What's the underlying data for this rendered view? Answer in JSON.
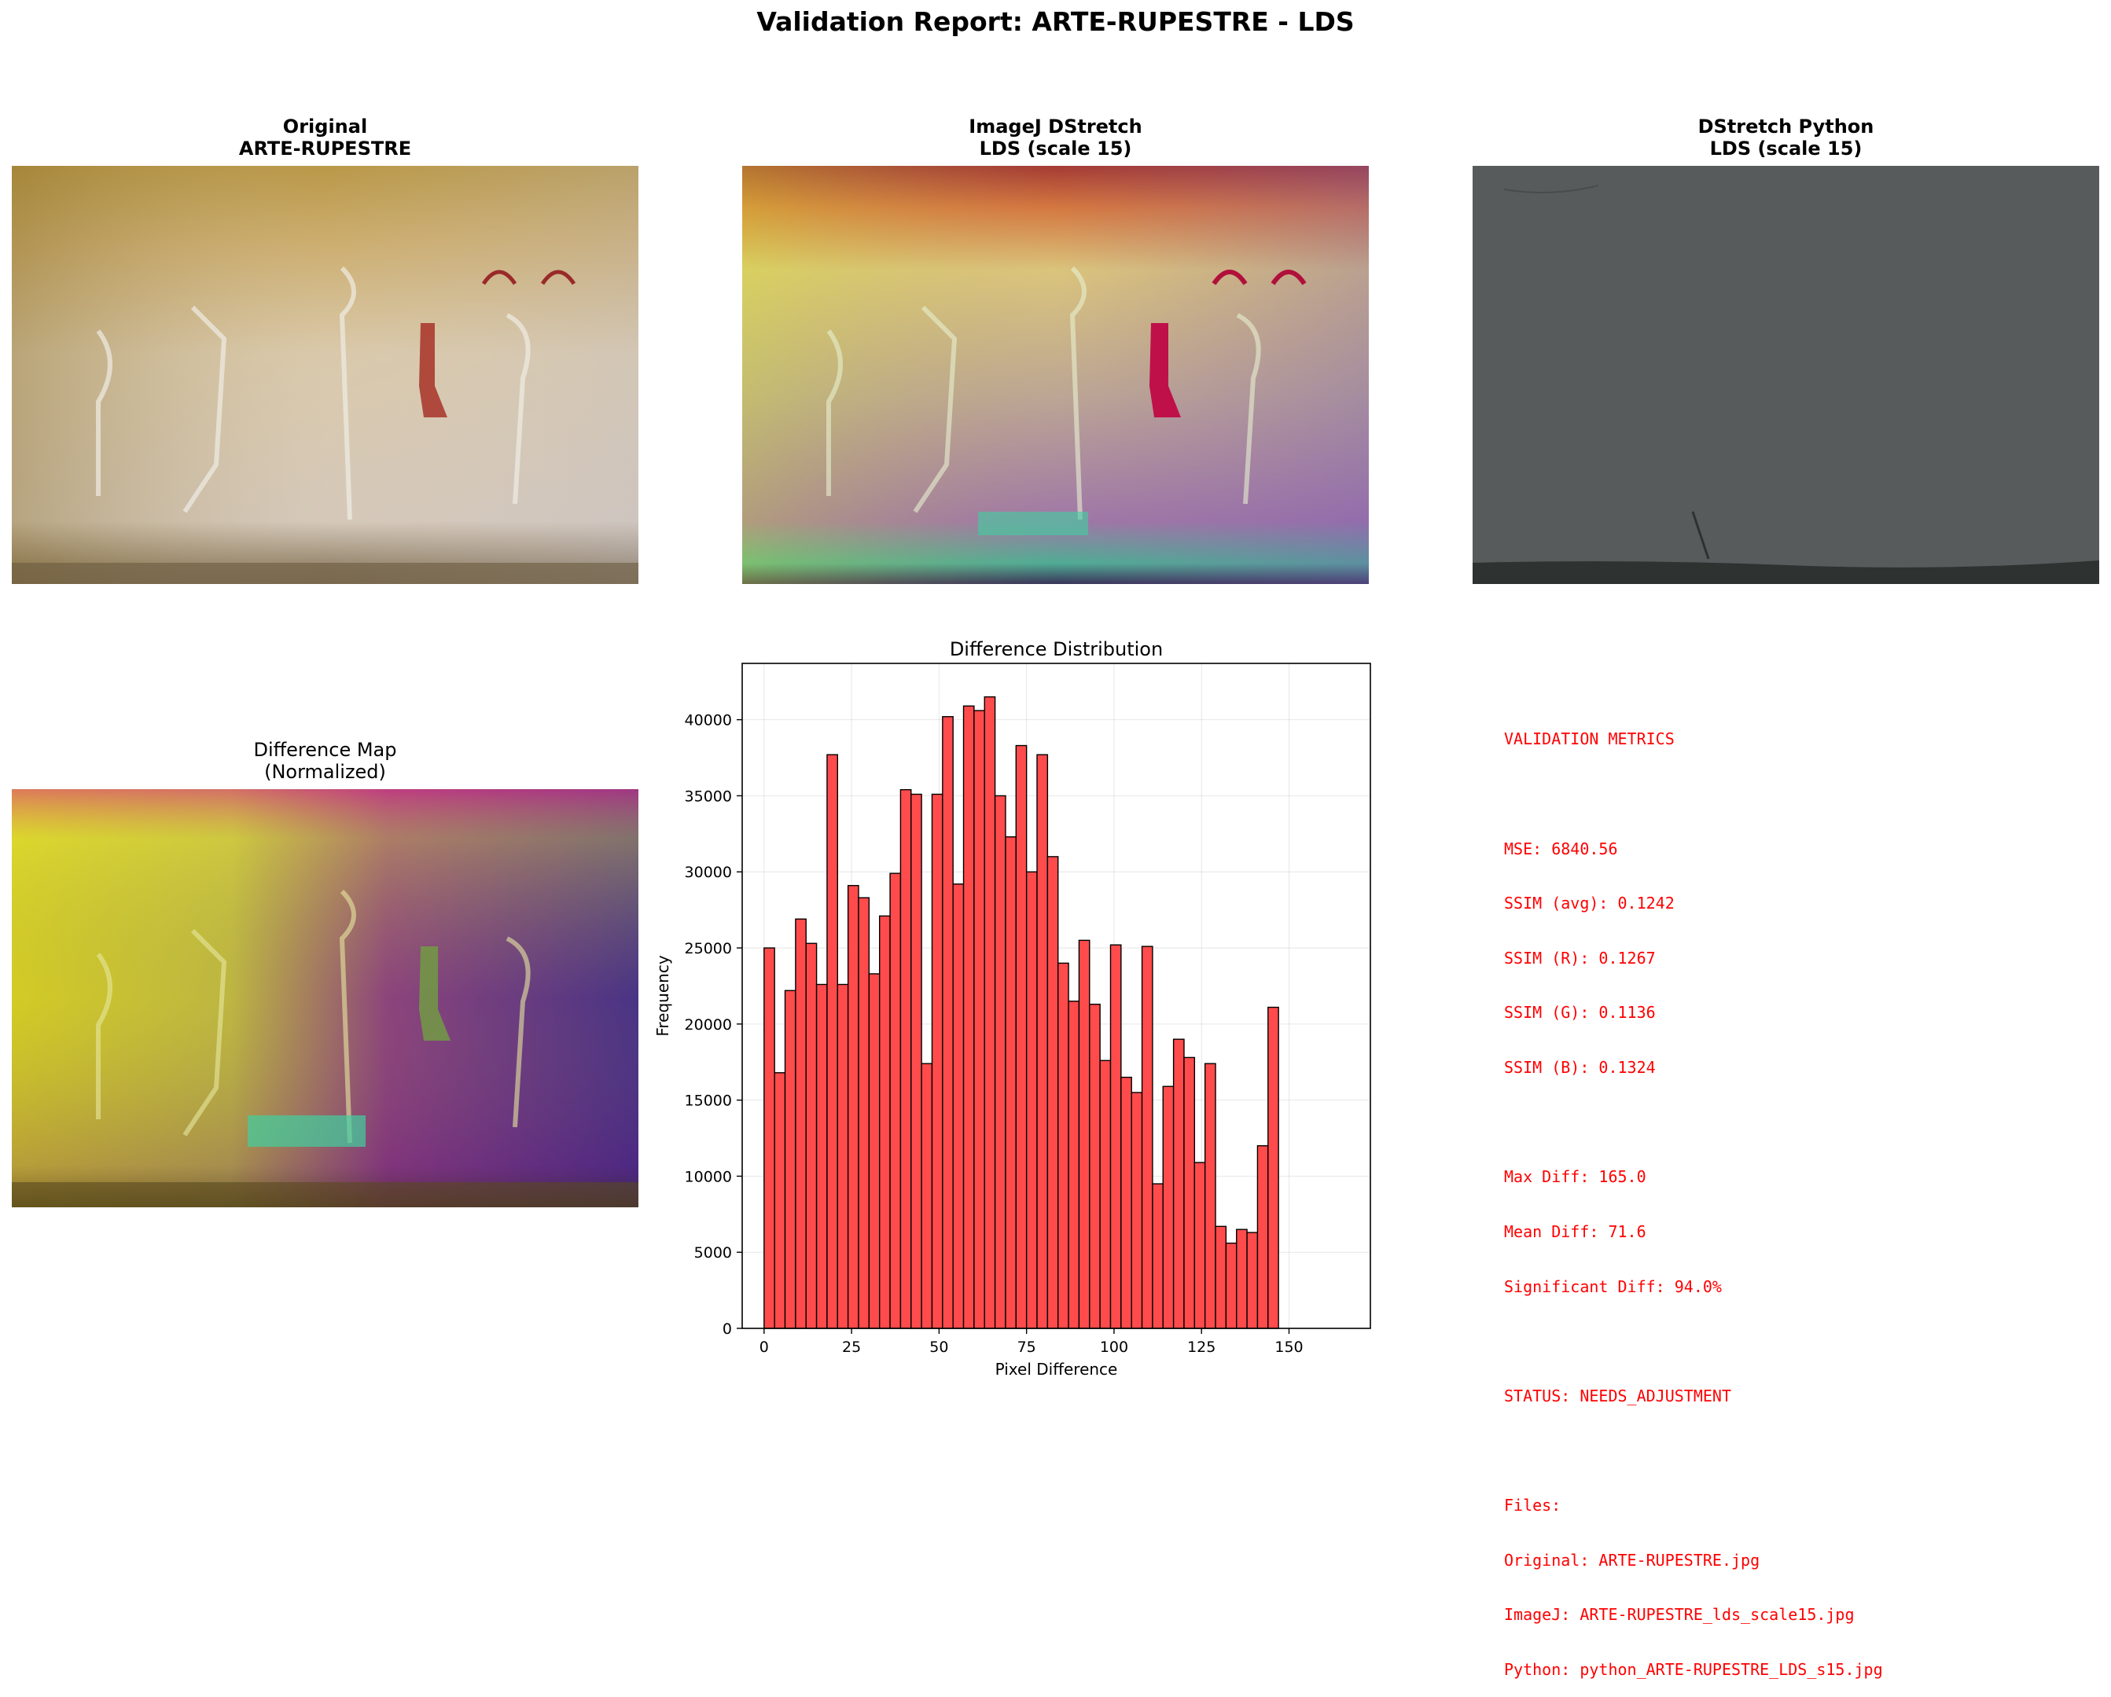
{
  "suptitle": "Validation Report: ARTE-RUPESTRE - LDS",
  "panels": {
    "original": {
      "title1": "Original",
      "title2": "ARTE-RUPESTRE"
    },
    "imagej": {
      "title1": "ImageJ DStretch",
      "title2": "LDS (scale 15)"
    },
    "python": {
      "title1": "DStretch Python",
      "title2": "LDS (scale 15)"
    },
    "diffmap": {
      "title1": "Difference Map",
      "title2": "(Normalized)"
    }
  },
  "colors": {
    "bar_fill": "#ff4b4b",
    "bar_edge": "#000000",
    "metrics_text": "#ff0000",
    "python_gray": "#575b5c"
  },
  "metrics": {
    "header": "VALIDATION METRICS",
    "mse": "MSE: 6840.56",
    "ssim_avg": "SSIM (avg): 0.1242",
    "ssim_r": "SSIM (R): 0.1267",
    "ssim_g": "SSIM (G): 0.1136",
    "ssim_b": "SSIM (B): 0.1324",
    "max_diff": "Max Diff: 165.0",
    "mean_diff": "Mean Diff: 71.6",
    "significant": "Significant Diff: 94.0%",
    "status": "STATUS: NEEDS_ADJUSTMENT",
    "files_header": "Files:",
    "file_original": "Original: ARTE-RUPESTRE.jpg",
    "file_imagej": "ImageJ: ARTE-RUPESTRE_lds_scale15.jpg",
    "file_python": "Python: python_ARTE-RUPESTRE_LDS_s15.jpg"
  },
  "chart_data": {
    "type": "bar",
    "title": "Difference Distribution",
    "xlabel": "Pixel Difference",
    "ylabel": "Frequency",
    "xlim": [
      -6.25,
      173.25
    ],
    "ylim": [
      0,
      43700
    ],
    "xticks": [
      0,
      25,
      50,
      75,
      100,
      125,
      150
    ],
    "yticks": [
      0,
      5000,
      10000,
      15000,
      20000,
      25000,
      30000,
      35000,
      40000
    ],
    "grid": true,
    "bin_start": 0,
    "bin_width": 3,
    "values": [
      25000,
      16800,
      22200,
      26900,
      25300,
      22600,
      37700,
      22600,
      29100,
      28300,
      23300,
      27100,
      29900,
      35400,
      35100,
      17400,
      35100,
      40200,
      29200,
      40900,
      40600,
      41500,
      35000,
      32300,
      38300,
      30000,
      37700,
      31000,
      24000,
      21500,
      25500,
      21300,
      17600,
      25200,
      16500,
      15500,
      25100,
      9500,
      15900,
      19000,
      17800,
      10900,
      17400,
      6700,
      5600,
      6500,
      6300,
      12000,
      21100
    ]
  }
}
